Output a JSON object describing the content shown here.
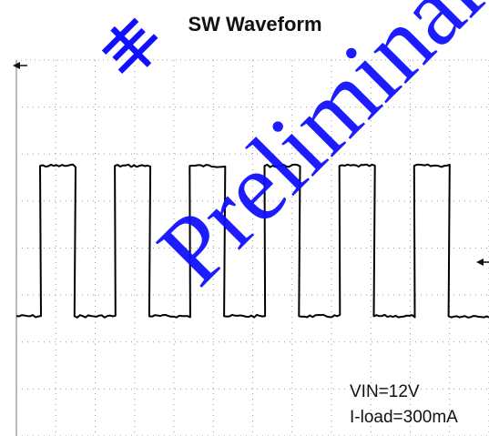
{
  "chart_data": {
    "type": "line",
    "title": "SW Waveform",
    "grid": true,
    "annotations": [
      "VIN=12V",
      "I-load=300mA"
    ],
    "series": [
      {
        "color": "#000000",
        "waveform": "square",
        "period_div": 1.9,
        "duty": 0.46,
        "low_level_div": 2.55,
        "high_level_div": 5.75,
        "first_rise_div": 0.6
      }
    ],
    "x_divisions": 12,
    "y_divisions": 8
  },
  "watermark": {
    "text": "Preliminary",
    "cn_text": "丰",
    "color": "#1010ff"
  }
}
